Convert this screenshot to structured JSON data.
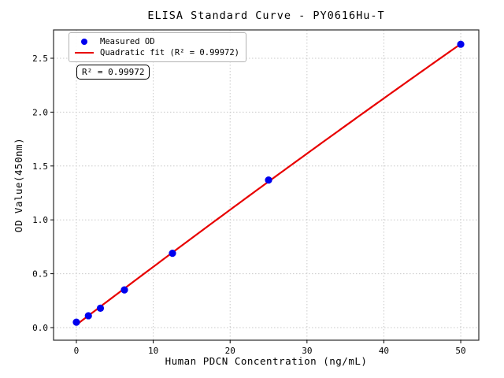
{
  "title": "ELISA Standard Curve - PY0616Hu-T",
  "annotation": "R² = 0.99972",
  "legend": {
    "measured_label": "Measured OD",
    "fit_label": "Quadratic fit (R² = 0.99972)"
  },
  "colors": {
    "measured": "#0000ee",
    "fit": "#e80000",
    "grid": "#c8c8c8",
    "spine": "#2a2a2a"
  },
  "chart_data": {
    "type": "scatter",
    "title": "ELISA Standard Curve - PY0616Hu-T",
    "xlabel": "Human PDCN Concentration (ng/mL)",
    "ylabel": "OD Value(450nm)",
    "x": [
      0,
      1.5625,
      3.125,
      6.25,
      12.5,
      25,
      50
    ],
    "y": [
      0.05,
      0.11,
      0.18,
      0.35,
      0.69,
      1.37,
      2.63
    ],
    "series": [
      {
        "name": "Measured OD",
        "type": "scatter",
        "color": "#0000ee"
      },
      {
        "name": "Quadratic fit (R² = 0.99972)",
        "type": "line",
        "color": "#e80000",
        "fit": "quadratic",
        "r_squared": 0.99972
      }
    ],
    "xticks": [
      "0",
      "10",
      "20",
      "30",
      "40",
      "50"
    ],
    "yticks": [
      "0.0",
      "0.5",
      "1.0",
      "1.5",
      "2.0",
      "2.5"
    ],
    "xlim": [
      -2.97,
      52.35
    ],
    "ylim": [
      -0.117,
      2.763
    ],
    "grid": true,
    "grid_style": "dotted",
    "legend_position": "upper left",
    "fit_x_range": [
      0,
      50
    ]
  }
}
